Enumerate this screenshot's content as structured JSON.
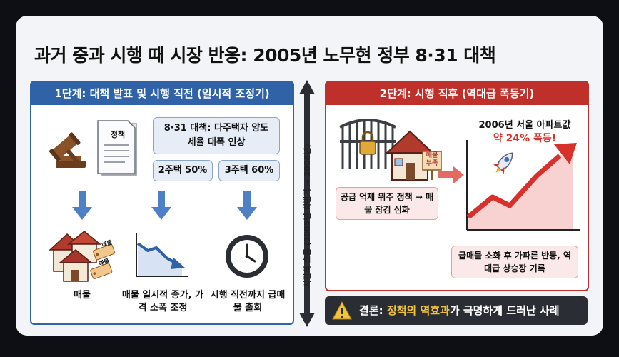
{
  "title": "과거 중과 시행 때 시장 반응: 2005년 노무현 정부 8·31 대책",
  "stage1": {
    "header": "1단계: 대책 발표 및 시행 직전 (일시적 조정기)",
    "doc_label": "정책",
    "policy_box": "8·31 대책: 다주택자 양도세율 대폭 인상",
    "tax_2house": "2주택 50%",
    "tax_3house": "3주택 60%",
    "house_tag": "매물",
    "outcomes": [
      "매물",
      "매물 일시적 증가, 가격 소폭 조정",
      "시행 직전까지 급매물 출회"
    ]
  },
  "timeline_label": "시간의 흐름 (2005년 하반기 → 2006년)",
  "stage2": {
    "header": "2단계: 시행 직후 (역대급 폭등기)",
    "house_sign": "매물 부족",
    "supply_box": "공급 억제 위주 정책 → 매물 잠김 심화",
    "price_line1": "2006년 서울 아파트값",
    "price_line2": "약 24% 폭등!",
    "rebound_box": "급매물 소화 후 가파른 반등, 역대급 상승장 기록"
  },
  "conclusion": {
    "prefix": "결론: ",
    "highlight": "정책의 역효과",
    "suffix": "가 극명하게 드러난 사례"
  },
  "colors": {
    "blue": "#2f62a6",
    "red": "#c0302a",
    "highlight": "#f3c43a"
  }
}
